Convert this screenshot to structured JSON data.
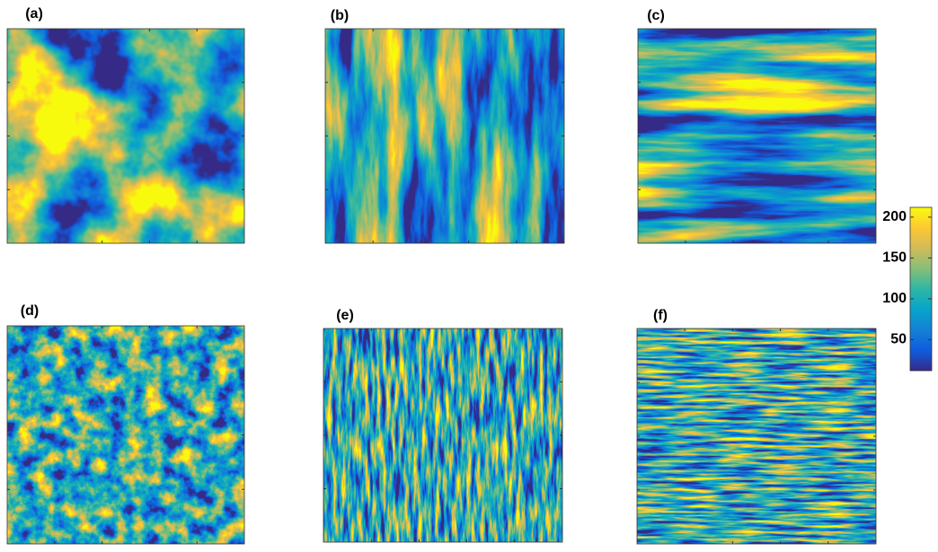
{
  "chart_data": {
    "type": "heatmap",
    "panels": [
      {
        "label": "(a)"
      },
      {
        "label": "(b)"
      },
      {
        "label": "(c)"
      },
      {
        "label": "(d)"
      },
      {
        "label": "(e)"
      },
      {
        "label": "(f)"
      }
    ],
    "colorbar": {
      "lim": [
        12,
        212
      ],
      "ticks": [
        50,
        100,
        150,
        200
      ],
      "colors": [
        "#352a87",
        "#0f5cdd",
        "#1481d6",
        "#06a4ca",
        "#2eb7a4",
        "#87bf77",
        "#d1bb59",
        "#fec832",
        "#f9fb0e"
      ]
    }
  }
}
